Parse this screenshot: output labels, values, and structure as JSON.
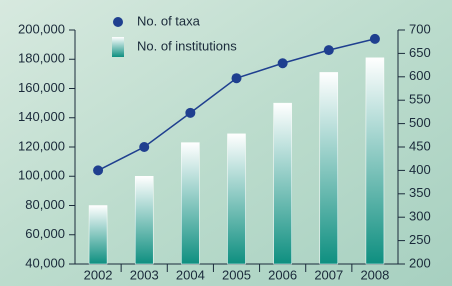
{
  "chart_data": {
    "type": "bar",
    "categories": [
      "2002",
      "2003",
      "2004",
      "2005",
      "2006",
      "2007",
      "2008"
    ],
    "series": [
      {
        "name": "No. of taxa",
        "type": "line",
        "axis": "y2",
        "color": "#1f3f8f",
        "values": [
          400,
          450,
          523,
          597,
          629,
          657,
          681
        ]
      },
      {
        "name": "No. of institutions",
        "type": "bar",
        "color": "#0e8f80",
        "values": [
          80000,
          100000,
          123000,
          129000,
          150000,
          171000,
          181000
        ]
      }
    ],
    "ylim": [
      40000,
      200000
    ],
    "yticks": [
      {
        "value": 40000,
        "label": "40,000"
      },
      {
        "value": 60000,
        "label": "60,000"
      },
      {
        "value": 80000,
        "label": "80,000"
      },
      {
        "value": 100000,
        "label": "100,000"
      },
      {
        "value": 120000,
        "label": "120,000"
      },
      {
        "value": 140000,
        "label": "140,000"
      },
      {
        "value": 160000,
        "label": "160,000"
      },
      {
        "value": 180000,
        "label": "180,000"
      },
      {
        "value": 200000,
        "label": "200,000"
      }
    ],
    "y2lim": [
      200,
      700
    ],
    "y2ticks": [
      200,
      250,
      300,
      350,
      400,
      450,
      500,
      550,
      600,
      650,
      700
    ],
    "legend": "top-left",
    "grid": false
  }
}
